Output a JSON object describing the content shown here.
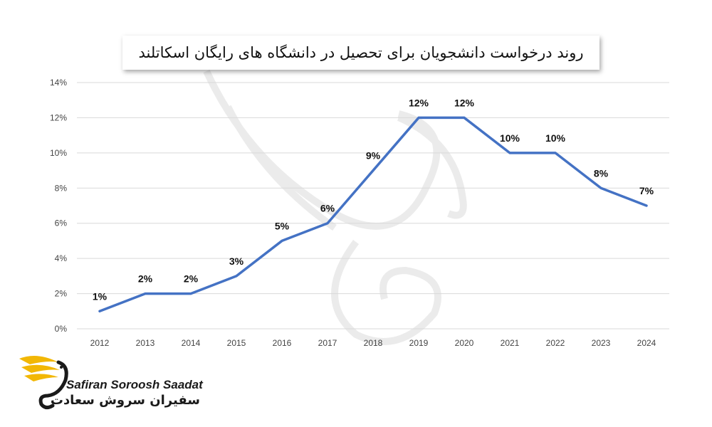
{
  "title": "روند درخواست دانشجویان برای تحصیل در دانشگاه های رایگان اسکاتلند",
  "brand": {
    "name_en": "Safiran Soroosh Saadat",
    "name_fa": "سفیران سروش سعادت"
  },
  "chart_data": {
    "type": "line",
    "title": "روند درخواست دانشجویان برای تحصیل در دانشگاه های رایگان اسکاتلند",
    "categories": [
      "2012",
      "2013",
      "2014",
      "2015",
      "2016",
      "2017",
      "2018",
      "2019",
      "2020",
      "2021",
      "2022",
      "2023",
      "2024"
    ],
    "values": [
      1,
      2,
      2,
      3,
      5,
      6,
      9,
      12,
      12,
      10,
      10,
      8,
      7
    ],
    "data_labels": [
      "1%",
      "2%",
      "2%",
      "3%",
      "5%",
      "6%",
      "9%",
      "12%",
      "12%",
      "10%",
      "10%",
      "8%",
      "7%"
    ],
    "y_ticks": [
      "0%",
      "2%",
      "4%",
      "6%",
      "8%",
      "10%",
      "12%",
      "14%"
    ],
    "ylim": [
      0,
      14
    ],
    "unit": "%",
    "grid": true,
    "line_color": "#4472c4"
  }
}
